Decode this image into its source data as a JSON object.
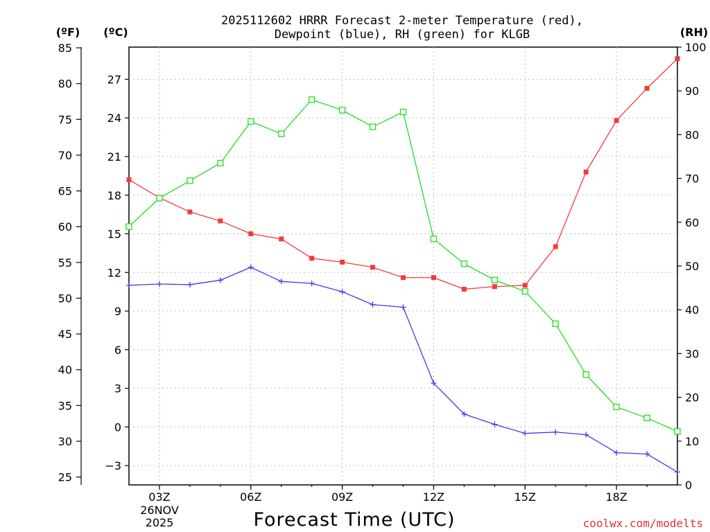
{
  "chart_data": {
    "type": "line",
    "title_line1": "2025112602 HRRR Forecast 2-meter Temperature (red),",
    "title_line2": "Dewpoint (blue), RH (green) for KLGB",
    "xlabel": "Forecast Time (UTC)",
    "credit": "coolwx.com/modelts",
    "x_hours": [
      2,
      3,
      4,
      5,
      6,
      7,
      8,
      9,
      10,
      11,
      12,
      13,
      14,
      15,
      16,
      17,
      18,
      19,
      20
    ],
    "xlim": [
      2,
      20
    ],
    "x_ticks": [
      {
        "hour": 3,
        "label": "03Z"
      },
      {
        "hour": 6,
        "label": "06Z"
      },
      {
        "hour": 9,
        "label": "09Z"
      },
      {
        "hour": 12,
        "label": "12Z"
      },
      {
        "hour": 15,
        "label": "15Z"
      },
      {
        "hour": 18,
        "label": "18Z"
      }
    ],
    "date_label_line1": "26NOV",
    "date_label_line2": "2025",
    "axes": {
      "left_f": {
        "unit": "(ºF)",
        "ticks": [
          25,
          30,
          35,
          40,
          45,
          50,
          55,
          60,
          65,
          70,
          75,
          80,
          85
        ]
      },
      "left_c": {
        "unit": "(ºC)",
        "ylim": [
          -4.5,
          29.5
        ],
        "ticks": [
          -3,
          0,
          3,
          6,
          9,
          12,
          15,
          18,
          21,
          24,
          27
        ],
        "tick_labels": [
          "−3",
          "0",
          "3",
          "6",
          "9",
          "12",
          "15",
          "18",
          "21",
          "24",
          "27"
        ]
      },
      "right_rh": {
        "unit": "(RH)",
        "ylim": [
          0,
          100
        ],
        "ticks": [
          0,
          10,
          20,
          30,
          40,
          50,
          60,
          70,
          80,
          90,
          100
        ]
      }
    },
    "series": [
      {
        "name": "2-meter Temperature",
        "color": "#f03c3c",
        "axis": "c",
        "marker": "filled-square",
        "values": [
          19.2,
          17.8,
          16.7,
          16.0,
          15.0,
          14.6,
          13.1,
          12.8,
          12.4,
          11.6,
          11.6,
          10.7,
          10.9,
          11.0,
          14.0,
          19.8,
          23.8,
          26.3,
          28.6
        ]
      },
      {
        "name": "Dewpoint",
        "color": "#3c3cf0",
        "axis": "c",
        "marker": "plus",
        "values": [
          11.0,
          11.1,
          11.05,
          11.4,
          12.4,
          11.3,
          11.15,
          10.5,
          9.5,
          9.3,
          3.4,
          1.0,
          0.2,
          -0.5,
          -0.4,
          -0.6,
          -2.0,
          -2.1,
          -3.5
        ]
      },
      {
        "name": "RH",
        "color": "#22dd22",
        "axis": "rh",
        "marker": "open-square",
        "values": [
          59,
          65.5,
          69.5,
          73.5,
          83,
          80.2,
          88,
          85.6,
          81.8,
          85.2,
          56.2,
          50.5,
          46.8,
          44.2,
          36.8,
          25.2,
          17.8,
          15.3,
          12.2
        ]
      }
    ]
  }
}
